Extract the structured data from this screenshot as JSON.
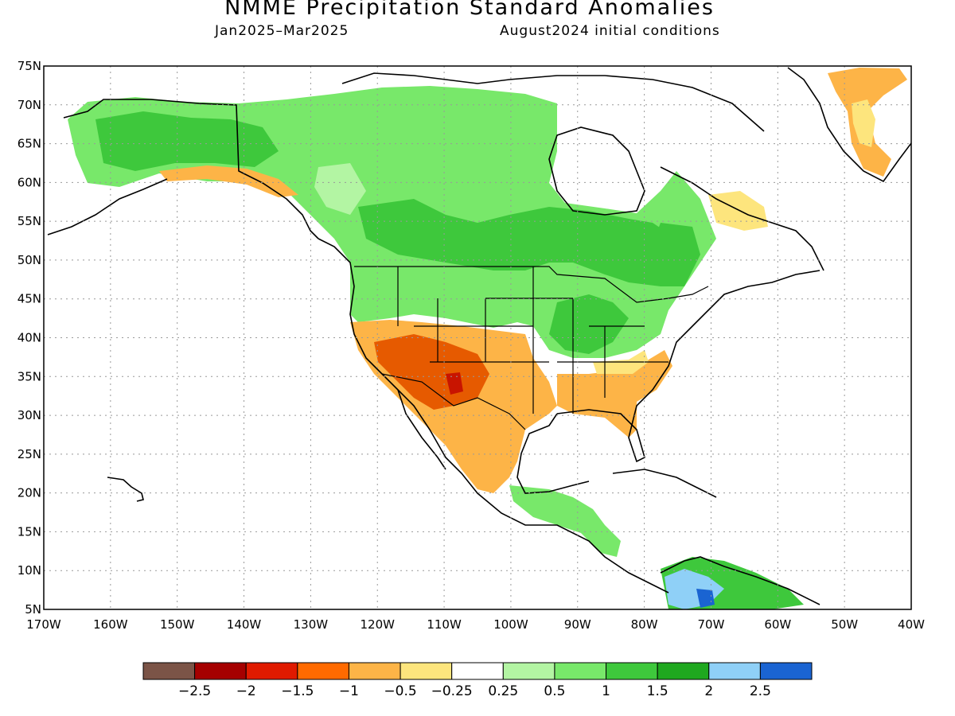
{
  "title": "NMME Precipitation Standard Anomalies",
  "period": "Jan2025–Mar2025",
  "init": "August2024 initial conditions",
  "map": {
    "lat_labels": [
      "75N",
      "70N",
      "65N",
      "60N",
      "55N",
      "50N",
      "45N",
      "40N",
      "35N",
      "30N",
      "25N",
      "20N",
      "15N",
      "10N",
      "5N"
    ],
    "lon_labels": [
      "170W",
      "160W",
      "150W",
      "140W",
      "130W",
      "120W",
      "110W",
      "100W",
      "90W",
      "80W",
      "70W",
      "60W",
      "50W",
      "40W"
    ],
    "lat_range": [
      5,
      75
    ],
    "lon_range": [
      -170,
      -40
    ],
    "grid": "dotted"
  },
  "colorbar": {
    "colors": [
      "#7b5447",
      "#a50000",
      "#e01a00",
      "#ff6a00",
      "#fdb447",
      "#fde57d",
      "#ffffff",
      "#b3f5a3",
      "#78e86a",
      "#3ec83c",
      "#1fa81f",
      "#8fd0f7",
      "#1a64d2"
    ],
    "labels": [
      "−2.5",
      "−2",
      "−1.5",
      "−1",
      "−0.5",
      "−0.25",
      "0.25",
      "0.5",
      "1",
      "1.5",
      "2",
      "2.5"
    ]
  },
  "colors": {
    "land_outline": "#000000",
    "dry_strong": "#e65a00",
    "dry": "#fdb447",
    "dry_weak": "#fde57d",
    "wet_weak": "#b3f5a3",
    "wet": "#78e86a",
    "wet_strong": "#3ec83c",
    "very_wet": "#8fd0f7",
    "extreme_wet": "#1a64d2"
  }
}
